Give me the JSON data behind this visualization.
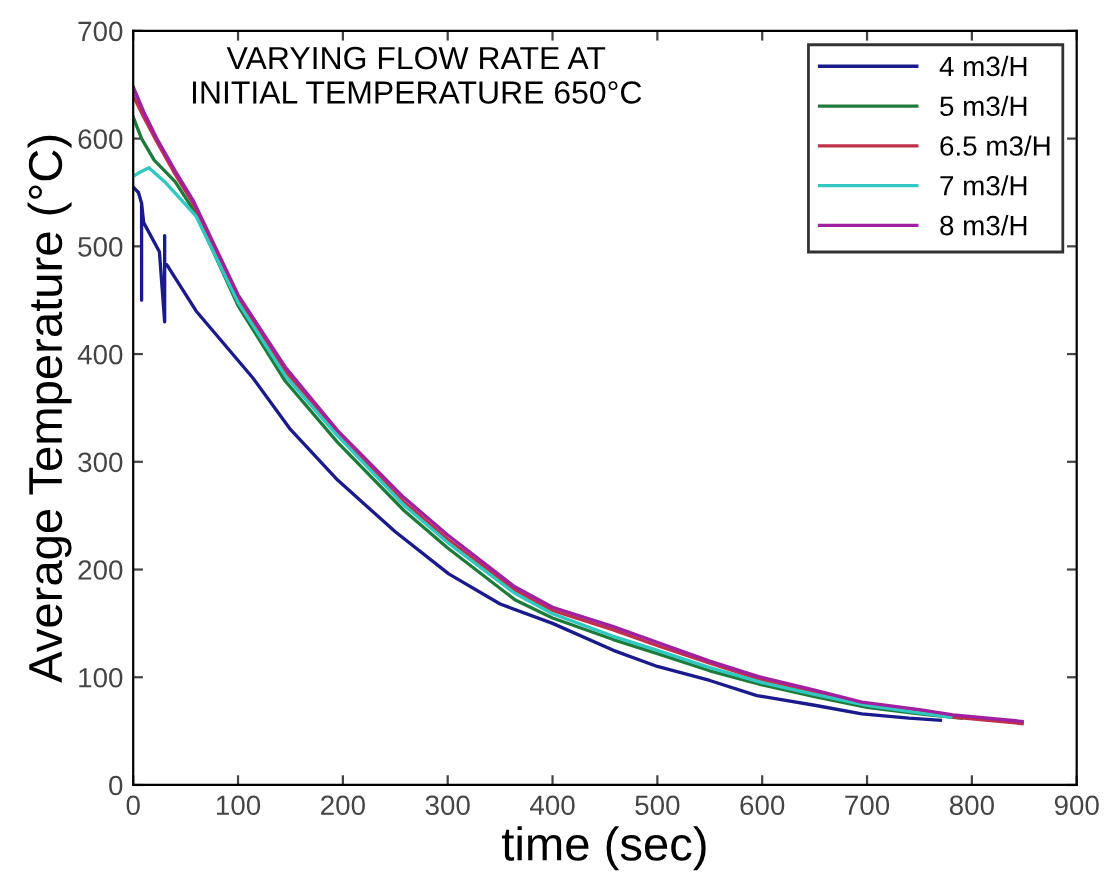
{
  "chart_data": {
    "type": "line",
    "title": "VARYING FLOW RATE AT\nINITIAL TEMPERATURE 650°C",
    "xlabel": "time (sec)",
    "ylabel": "Average Temperature (°C)",
    "xlim": [
      0,
      900
    ],
    "ylim": [
      0,
      700
    ],
    "xticks": [
      0,
      100,
      200,
      300,
      400,
      500,
      600,
      700,
      800,
      900
    ],
    "yticks": [
      0,
      100,
      200,
      300,
      400,
      500,
      600,
      700
    ],
    "grid": false,
    "legend": "top right",
    "marker": "none",
    "line_style": "solid",
    "series": [
      {
        "name": "4 m3/H",
        "color": "#1a1a8c",
        "x": [
          0,
          5,
          8,
          8,
          8,
          10,
          25,
          30,
          30,
          30,
          32,
          60,
          114,
          150,
          195,
          250,
          301,
          350,
          400,
          458,
          500,
          550,
          595,
          650,
          695,
          740,
          770
        ],
        "values": [
          555,
          550,
          540,
          450,
          540,
          522,
          495,
          430,
          510,
          483,
          483,
          440,
          378,
          330,
          283,
          235,
          196,
          168,
          150,
          125,
          110,
          97,
          83,
          74,
          66,
          62,
          60
        ]
      },
      {
        "name": "5 m3/H",
        "color": "#1e7a3a",
        "x": [
          0,
          8,
          20,
          40,
          60,
          100,
          145,
          195,
          258,
          300,
          364,
          400,
          458,
          500,
          550,
          600,
          650,
          700,
          750,
          790
        ],
        "values": [
          620,
          600,
          580,
          560,
          530,
          445,
          375,
          318,
          255,
          220,
          172,
          155,
          135,
          122,
          106,
          93,
          82,
          72,
          66,
          62
        ]
      },
      {
        "name": "6.5 m3/H",
        "color": "#c0304a",
        "x": [
          0,
          10,
          22,
          40,
          57,
          100,
          145,
          195,
          258,
          300,
          364,
          400,
          458,
          501,
          550,
          595,
          650,
          695,
          750,
          782,
          848
        ],
        "values": [
          640,
          620,
          598,
          567,
          540,
          452,
          384,
          325,
          263,
          228,
          181,
          162,
          144,
          129,
          113,
          99,
          86,
          76,
          68,
          63,
          57
        ]
      },
      {
        "name": "7 m3/H",
        "color": "#30c8c0",
        "x": [
          0,
          5,
          15,
          30,
          60,
          100,
          145,
          195,
          258,
          300,
          364,
          400,
          458,
          500,
          550,
          600,
          650,
          700,
          750,
          780
        ],
        "values": [
          565,
          568,
          573,
          560,
          528,
          448,
          380,
          324,
          260,
          225,
          178,
          159,
          138,
          125,
          109,
          95,
          84,
          74,
          67,
          63
        ]
      },
      {
        "name": "8 m3/H",
        "color": "#a020a0",
        "x": [
          0,
          10,
          22,
          40,
          57,
          100,
          145,
          195,
          258,
          300,
          364,
          400,
          458,
          501,
          550,
          595,
          650,
          695,
          750,
          782,
          848
        ],
        "values": [
          648,
          625,
          601,
          570,
          543,
          455,
          388,
          329,
          267,
          232,
          184,
          165,
          147,
          132,
          115,
          101,
          88,
          77,
          70,
          65,
          59
        ]
      }
    ]
  }
}
